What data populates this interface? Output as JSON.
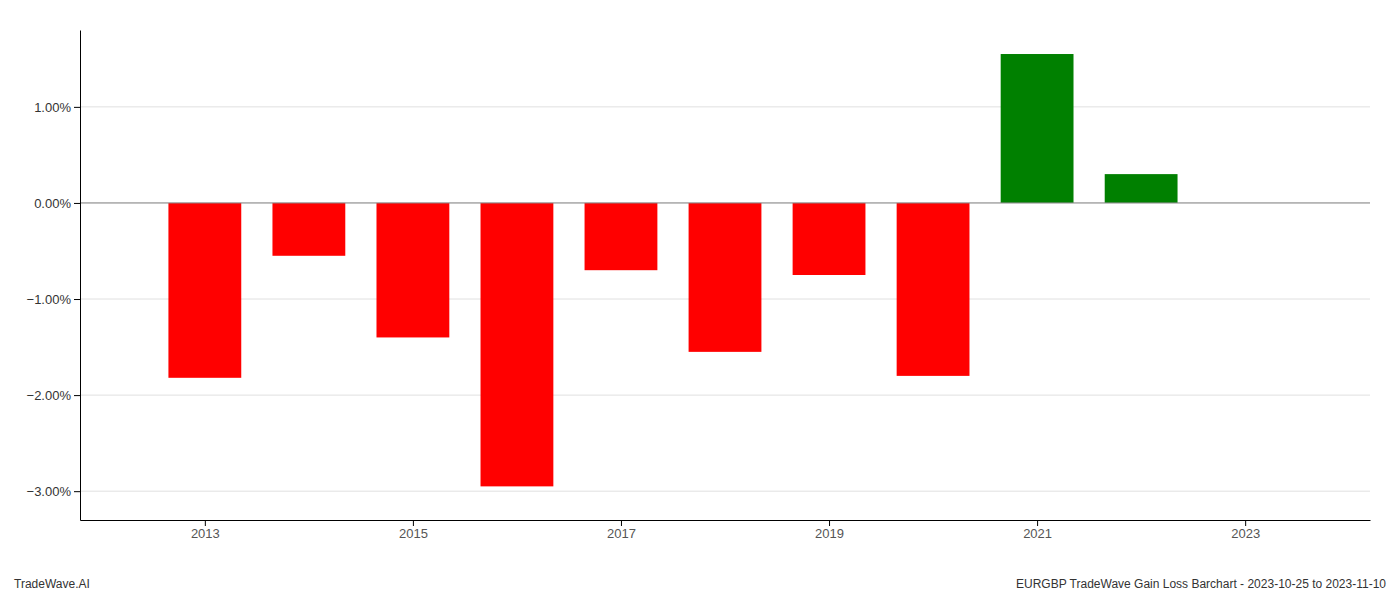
{
  "chart_data": {
    "type": "bar",
    "x": [
      2013,
      2014,
      2015,
      2016,
      2017,
      2018,
      2019,
      2020,
      2021,
      2022
    ],
    "values": [
      -1.82,
      -0.55,
      -1.4,
      -2.95,
      -0.7,
      -1.55,
      -0.75,
      -1.8,
      1.55,
      0.3
    ],
    "colors": [
      "#ff0000",
      "#ff0000",
      "#ff0000",
      "#ff0000",
      "#ff0000",
      "#ff0000",
      "#ff0000",
      "#ff0000",
      "#008000",
      "#008000"
    ],
    "xlim": [
      2011.8,
      2024.2
    ],
    "xticks": [
      2013,
      2015,
      2017,
      2019,
      2021,
      2023
    ],
    "ylim": [
      -3.3,
      1.8
    ],
    "yticks": [
      {
        "value": -3.0,
        "label": "−3.00%"
      },
      {
        "value": -2.0,
        "label": "−2.00%"
      },
      {
        "value": -1.0,
        "label": "−1.00%"
      },
      {
        "value": 0.0,
        "label": "0.00%"
      },
      {
        "value": 1.0,
        "label": "1.00%"
      }
    ],
    "grid": true,
    "annotations": [
      "TradeWave.AI",
      "EURGBP TradeWave Gain Loss Barchart - 2023-10-25 to 2023-11-10"
    ]
  }
}
